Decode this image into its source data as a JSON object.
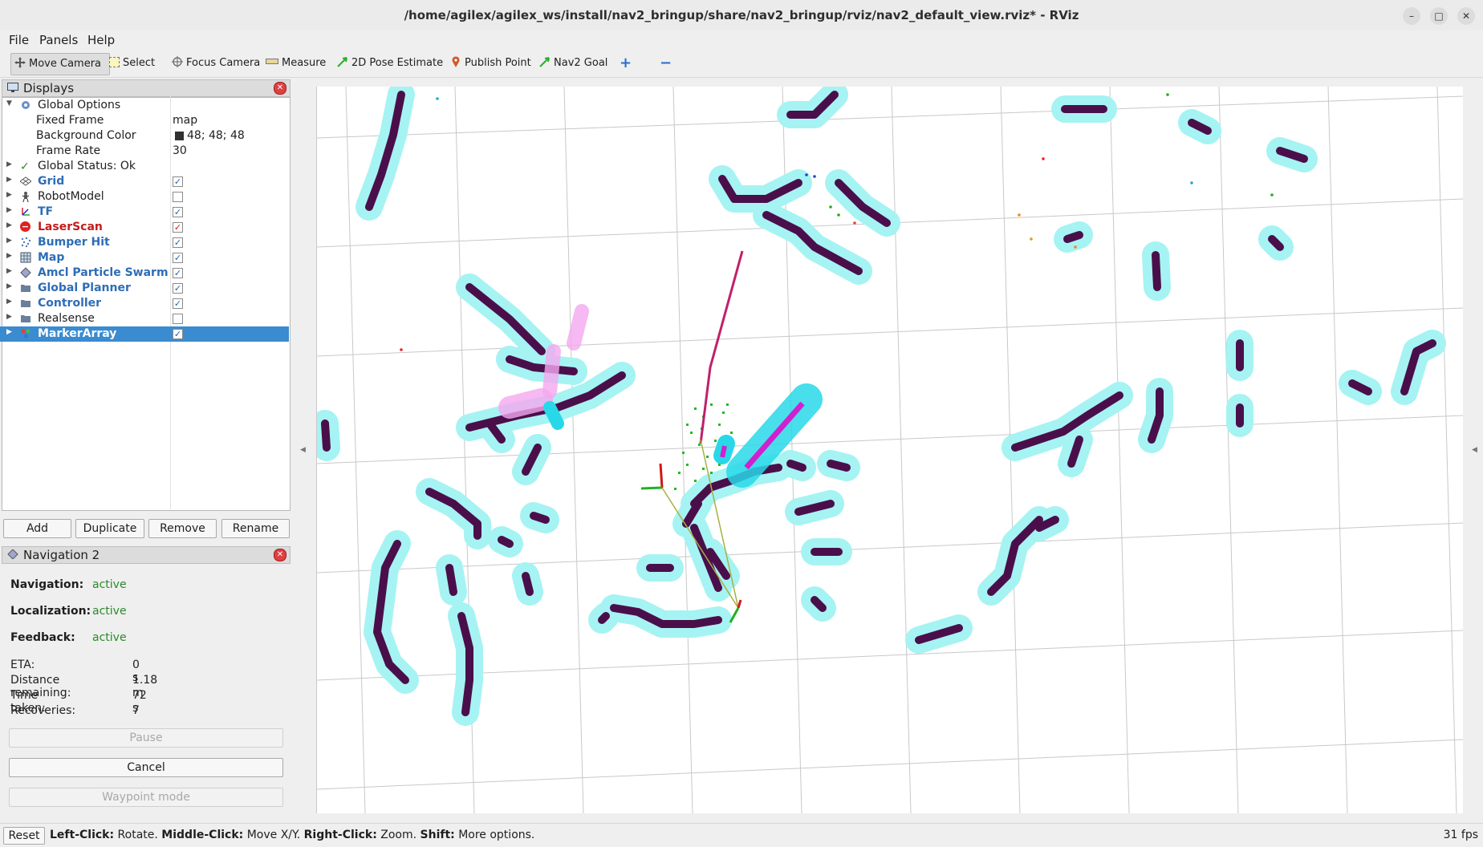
{
  "window": {
    "title": "/home/agilex/agilex_ws/install/nav2_bringup/share/nav2_bringup/rviz/nav2_default_view.rviz* - RViz"
  },
  "menu": [
    "File",
    "Panels",
    "Help"
  ],
  "toolbar": {
    "tools": [
      "Move Camera",
      "Select",
      "Focus Camera",
      "Measure",
      "2D Pose Estimate",
      "Publish Point",
      "Nav2 Goal"
    ]
  },
  "displays": {
    "title": "Displays",
    "rows": [
      {
        "name": "Global Options",
        "value": ""
      },
      {
        "name": "Fixed Frame",
        "value": "map"
      },
      {
        "name": "Background Color",
        "value": "48; 48; 48"
      },
      {
        "name": "Frame Rate",
        "value": "30"
      },
      {
        "name": "Global Status: Ok",
        "value": ""
      },
      {
        "name": "Grid",
        "checked": true
      },
      {
        "name": "RobotModel",
        "checked": false
      },
      {
        "name": "TF",
        "checked": true
      },
      {
        "name": "LaserScan",
        "checked": true
      },
      {
        "name": "Bumper Hit",
        "checked": true
      },
      {
        "name": "Map",
        "checked": true
      },
      {
        "name": "Amcl Particle Swarm",
        "checked": true
      },
      {
        "name": "Global Planner",
        "checked": true
      },
      {
        "name": "Controller",
        "checked": true
      },
      {
        "name": "Realsense",
        "checked": false
      },
      {
        "name": "MarkerArray",
        "checked": true
      }
    ],
    "buttons": [
      "Add",
      "Duplicate",
      "Remove",
      "Rename"
    ],
    "check_glyph": "✓"
  },
  "navigation": {
    "title": "Navigation 2",
    "statuses": [
      {
        "key": "Navigation:",
        "value": "active"
      },
      {
        "key": "Localization:",
        "value": "active"
      },
      {
        "key": "Feedback:",
        "value": "active"
      }
    ],
    "stats": [
      {
        "key": "ETA:",
        "value": "0 s"
      },
      {
        "key": "Distance remaining:",
        "value": "1.18 m"
      },
      {
        "key": "Time taken:",
        "value": "72 s"
      },
      {
        "key": "Recoveries:",
        "value": "7"
      }
    ],
    "buttons": [
      "Pause",
      "Cancel",
      "Waypoint mode"
    ]
  },
  "statusbar": {
    "reset": "Reset",
    "hints": [
      {
        "b": "Left-Click:",
        "t": "Rotate."
      },
      {
        "b": "Middle-Click:",
        "t": "Move X/Y."
      },
      {
        "b": "Right-Click:",
        "t": "Zoom."
      },
      {
        "b": "Shift:",
        "t": "More options."
      }
    ],
    "fps": "31 fps"
  },
  "colors": {
    "obstacle": "#4a0f4a",
    "inflation": "#9ff5f5",
    "laser_cyan": "#2ad8e8",
    "path_magenta": "#d020d0",
    "particles": "#22bb22",
    "grid_line": "#c8c8c8"
  }
}
